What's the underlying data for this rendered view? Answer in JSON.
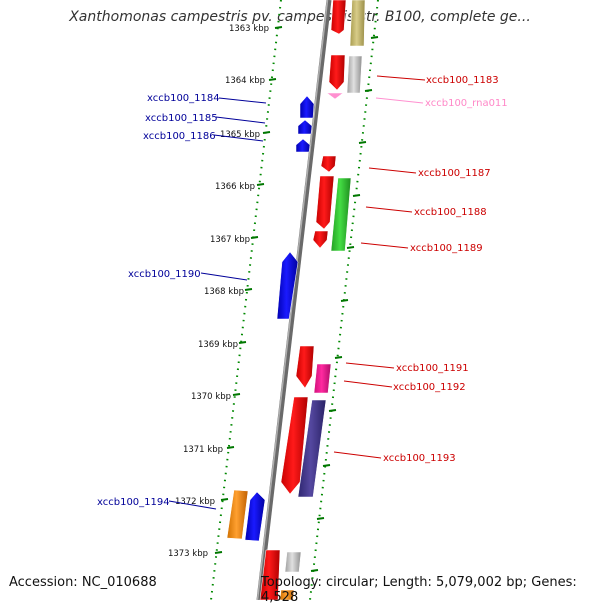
{
  "title": "Xanthomonas campestris pv. campestris str. B100, complete ge...",
  "footer": {
    "accession": "Accession: NC_010688",
    "topology": "Topology: circular; Length: 5,079,002 bp; Genes: 4,528"
  },
  "axis": {
    "unit": "kbp",
    "ticks": [
      {
        "label": "1363 kbp"
      },
      {
        "label": "1364 kbp"
      },
      {
        "label": "1365 kbp"
      },
      {
        "label": "1366 kbp"
      },
      {
        "label": "1367 kbp"
      },
      {
        "label": "1368 kbp"
      },
      {
        "label": "1369 kbp"
      },
      {
        "label": "1370 kbp"
      },
      {
        "label": "1371 kbp"
      },
      {
        "label": "1372 kbp"
      },
      {
        "label": "1373 kbp"
      }
    ]
  },
  "colors": {
    "forward_cds": "#ff0000",
    "reverse_cds": "#0000ff",
    "rna": "#ff9bd2",
    "forward_label": "#cc0000",
    "reverse_label": "#000099",
    "backbone": "#8c8c8c",
    "tick": "#007700"
  },
  "genes": [
    {
      "label": "xccb100_1183",
      "strand": "forward",
      "color": "#ff0000"
    },
    {
      "label": "xccb100_rna011",
      "strand": "forward",
      "color": "#ff80c0"
    },
    {
      "label": "xccb100_1184",
      "strand": "reverse",
      "color": "#0000ff"
    },
    {
      "label": "xccb100_1185",
      "strand": "reverse",
      "color": "#0000ff"
    },
    {
      "label": "xccb100_1186",
      "strand": "reverse",
      "color": "#0000ff"
    },
    {
      "label": "xccb100_1187",
      "strand": "forward",
      "color": "#ff0000"
    },
    {
      "label": "xccb100_1188",
      "strand": "forward",
      "color": "#ff0000"
    },
    {
      "label": "xccb100_1189",
      "strand": "forward",
      "color": "#33cc33"
    },
    {
      "label": "xccb100_1190",
      "strand": "reverse",
      "color": "#0000ff"
    },
    {
      "label": "xccb100_1191",
      "strand": "forward",
      "color": "#ff0000"
    },
    {
      "label": "xccb100_1192",
      "strand": "forward",
      "color": "#ff1493"
    },
    {
      "label": "xccb100_1193",
      "strand": "forward",
      "color": "#483d8b"
    },
    {
      "label": "xccb100_1194",
      "strand": "reverse",
      "color": "#0000ff"
    }
  ]
}
